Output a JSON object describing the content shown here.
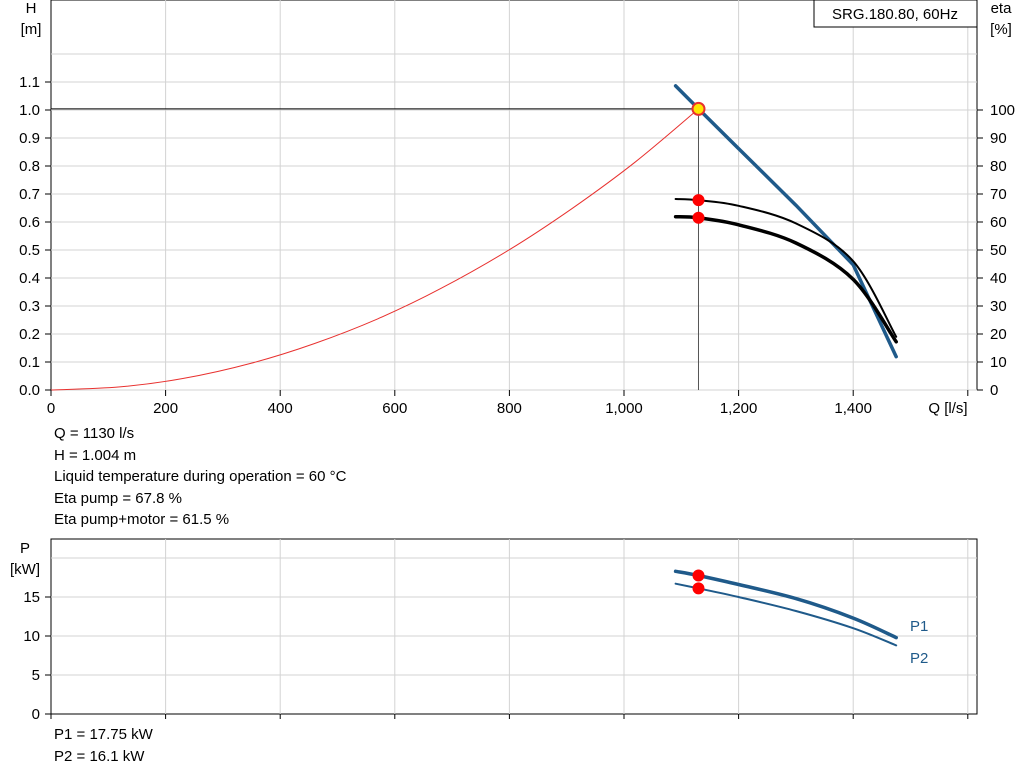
{
  "chart_data": [
    {
      "type": "line",
      "title_box": "SRG.180.80, 60Hz",
      "xlabel": "Q [l/s]",
      "ylabel_top": "H",
      "ylabel_unit": "[m]",
      "y2label_top": "eta",
      "y2label_unit": "[%]",
      "xlim": [
        0,
        1600
      ],
      "ylim": [
        0,
        1.1
      ],
      "y2lim": [
        0,
        100
      ],
      "grid": true,
      "x_ticks": [
        0,
        200,
        400,
        600,
        800,
        1000,
        1200,
        1400
      ],
      "x_tick_labels": [
        "0",
        "200",
        "400",
        "600",
        "800",
        "1,000",
        "1,200",
        "1,400"
      ],
      "y_ticks": [
        0,
        0.1,
        0.2,
        0.3,
        0.4,
        0.5,
        0.6,
        0.7,
        0.8,
        0.9,
        1.0,
        1.1
      ],
      "y_tick_labels": [
        "0.0",
        "0.1",
        "0.2",
        "0.3",
        "0.4",
        "0.5",
        "0.6",
        "0.7",
        "0.8",
        "0.9",
        "1.0",
        "1.1"
      ],
      "y2_ticks": [
        0,
        10,
        20,
        30,
        40,
        50,
        60,
        70,
        80,
        90,
        100
      ],
      "y2_tick_labels": [
        "0",
        "10",
        "20",
        "30",
        "40",
        "50",
        "60",
        "70",
        "80",
        "90",
        "100"
      ],
      "series": [
        {
          "role": "system-curve",
          "axis": "y",
          "color": "#e8312f",
          "x": [
            0,
            120,
            230,
            350,
            460,
            570,
            680,
            800,
            910,
            1020,
            1130
          ],
          "y": [
            0,
            0.011,
            0.041,
            0.096,
            0.166,
            0.254,
            0.362,
            0.501,
            0.649,
            0.815,
            1.004
          ]
        },
        {
          "role": "pump-head",
          "axis": "y",
          "color": "#1f5a8a",
          "x": [
            1090,
            1130,
            1200,
            1300,
            1400,
            1475
          ],
          "y": [
            1.086,
            1.004,
            0.862,
            0.66,
            0.447,
            0.119
          ]
        },
        {
          "role": "eta-pump",
          "axis": "y2",
          "color": "#000000",
          "x": [
            1090,
            1130,
            1200,
            1300,
            1400,
            1475
          ],
          "y": [
            68.2,
            67.8,
            65.8,
            59.5,
            46.0,
            19.0
          ]
        },
        {
          "role": "eta-pump-motor",
          "axis": "y2",
          "color": "#000000",
          "x": [
            1090,
            1130,
            1200,
            1300,
            1400,
            1475
          ],
          "y": [
            61.9,
            61.5,
            59.0,
            52.5,
            39.5,
            17.2
          ]
        }
      ],
      "duty_point": {
        "x": 1130,
        "y": 1.004,
        "eta_pump": 67.8,
        "eta_pump_motor": 61.5
      }
    },
    {
      "type": "line",
      "ylabel_top": "P",
      "ylabel_unit": "[kW]",
      "xlim": [
        0,
        1600
      ],
      "ylim": [
        0,
        20.5
      ],
      "grid": true,
      "y_ticks": [
        0,
        5,
        10,
        15
      ],
      "y_tick_labels": [
        "0",
        "5",
        "10",
        "15"
      ],
      "series": [
        {
          "name": "P1",
          "color": "#1f5a8a",
          "x": [
            1090,
            1130,
            1200,
            1300,
            1400,
            1475
          ],
          "y": [
            18.3,
            17.75,
            16.6,
            14.8,
            12.3,
            9.8
          ]
        },
        {
          "name": "P2",
          "color": "#1f5a8a",
          "x": [
            1090,
            1130,
            1200,
            1300,
            1400,
            1475
          ],
          "y": [
            16.7,
            16.1,
            15.0,
            13.2,
            11.0,
            8.8
          ]
        }
      ],
      "duty_point": {
        "x": 1130,
        "p1": 17.75,
        "p2": 16.1
      }
    }
  ],
  "operating_info": [
    "Q = 1130 l/s",
    "H = 1.004 m",
    "Liquid temperature during operation = 60 °C",
    "Eta pump = 67.8 %",
    "Eta pump+motor = 61.5 %"
  ],
  "power_info": [
    "P1 = 17.75 kW",
    "P2 = 16.1 kW"
  ]
}
